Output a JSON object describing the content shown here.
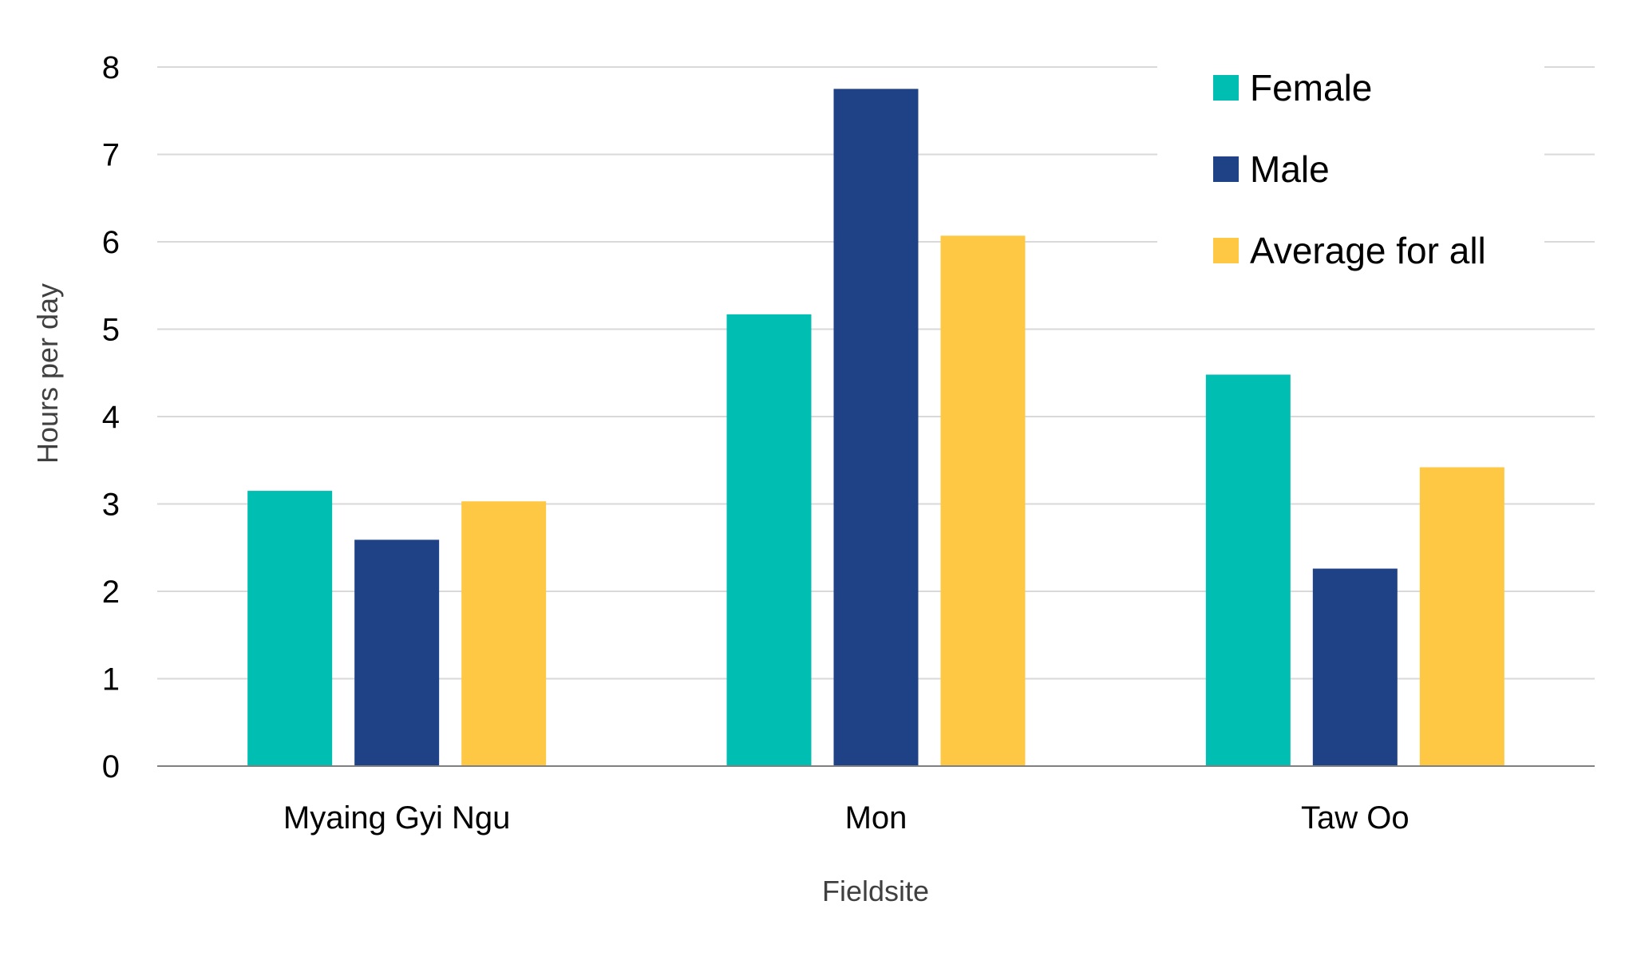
{
  "chart_data": {
    "type": "bar",
    "title": "",
    "xlabel": "Fieldsite",
    "ylabel": "Hours per day",
    "categories": [
      "Myaing Gyi Ngu",
      "Mon",
      "Taw Oo"
    ],
    "series": [
      {
        "name": "Female",
        "color": "#00BFB2",
        "values": [
          3.15,
          5.17,
          4.48
        ]
      },
      {
        "name": "Male",
        "color": "#1F4287",
        "values": [
          2.59,
          7.75,
          2.26
        ]
      },
      {
        "name": "Average for all",
        "color": "#FEC845",
        "values": [
          3.03,
          6.07,
          3.42
        ]
      }
    ],
    "ylim": [
      0,
      8
    ],
    "yticks": [
      "0",
      "1",
      "2",
      "3",
      "4",
      "5",
      "6",
      "7",
      "8"
    ],
    "grid": true,
    "legend": "top-right"
  }
}
